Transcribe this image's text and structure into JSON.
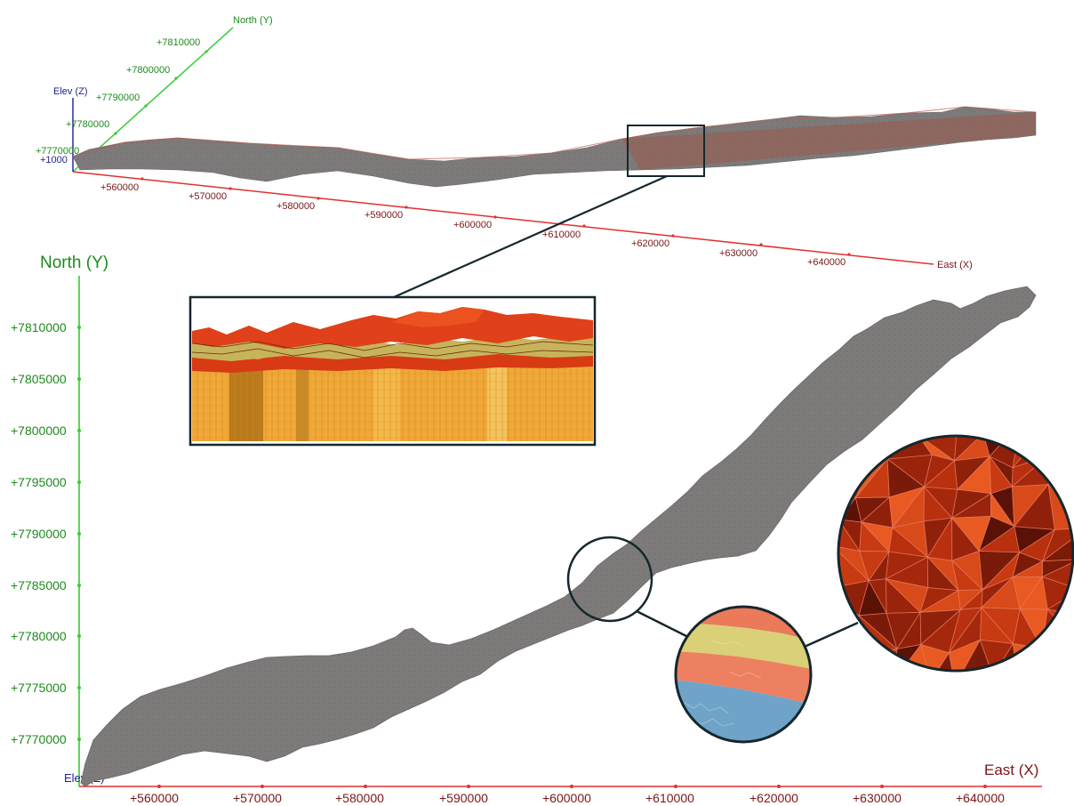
{
  "colors": {
    "east_axis": "#e03030",
    "east_text": "#7a1515",
    "north_axis": "#33cc33",
    "north_text": "#1c8a1c",
    "elev_axis": "#2a2aa0",
    "elev_text": "#1f1f8f",
    "mesh_gray": "#7b7b7b",
    "frame_dark": "#15272d",
    "layer_red": "#d83a14",
    "layer_yellow": "#c7b45a",
    "layer_orange": "#f0a838",
    "layer_salmon": "#ea7a5a",
    "layer_blue": "#6fa3c8"
  },
  "perspective_view": {
    "north_axis_label": "North (Y)",
    "elev_axis_label": "Elev (Z)",
    "east_axis_label": "East (X)",
    "elev_tick": "+1000",
    "north_ticks": [
      "+7770000",
      "+7780000",
      "+7790000",
      "+7800000",
      "+7810000"
    ],
    "east_ticks": [
      "+560000",
      "+570000",
      "+580000",
      "+590000",
      "+600000",
      "+610000",
      "+620000",
      "+630000",
      "+640000"
    ]
  },
  "plan_view": {
    "north_axis_label": "North (Y)",
    "east_axis_label": "East (X)",
    "elev_axis_label": "Elev (Z)",
    "north_ticks": [
      "+7810000",
      "+7805000",
      "+7800000",
      "+7795000",
      "+7790000",
      "+7785000",
      "+7780000",
      "+7775000",
      "+7770000"
    ],
    "east_ticks": [
      "+560000",
      "+570000",
      "+580000",
      "+590000",
      "+600000",
      "+610000",
      "+620000",
      "+630000",
      "+640000"
    ]
  },
  "insets": {
    "cross_section": "layered cross-section zoom",
    "layer_detail": "circular layer detail zoom",
    "triangle_mesh": "circular triangulated mesh zoom"
  }
}
